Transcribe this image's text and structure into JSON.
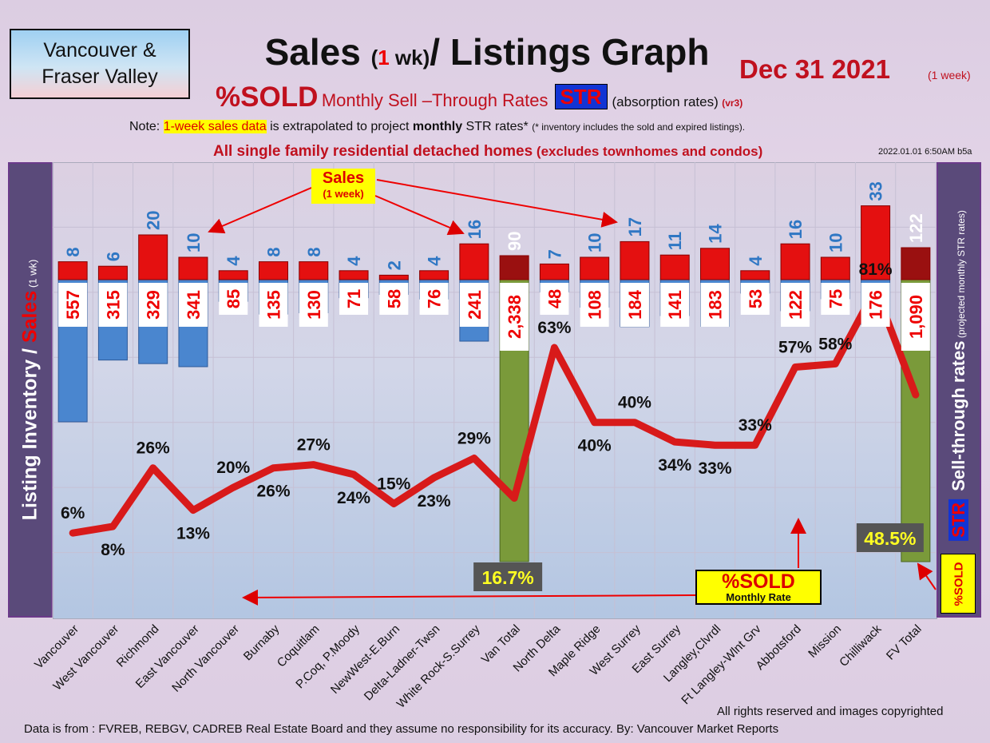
{
  "header": {
    "region": "Vancouver &\nFraser Valley",
    "title_main": "Sales",
    "title_paren_open": "(",
    "title_one": "1",
    "title_wk": " wk)",
    "title_rest": "/ Listings Graph",
    "date": "Dec  31  2021",
    "date_note": "(1 week)",
    "subtitle_pct": "%SOLD",
    "subtitle_rate": "Monthly Sell –Through Rates",
    "subtitle_str": "STR",
    "subtitle_abs": "(absorption rates)",
    "subtitle_ver": "(vr3)",
    "note_prefix": "Note: ",
    "note_highlight": "1-week sales data",
    "note_mid": " is extrapolated to project ",
    "note_bold": "monthly",
    "note_end": " STR rates* ",
    "note_small": "(* inventory includes the sold and expired listings).",
    "detached_main": "All single family residential detached homes",
    "detached_small": " (excludes townhomes and condos)",
    "timestamp": "2022.01.01 6:50AM b5a"
  },
  "axes": {
    "left_inventory": "Listing Inventory",
    "left_slash": " / ",
    "left_sales": "Sales",
    "left_sub": " (1 wk)",
    "right_str": "STR",
    "right_main": " Sell-through rates",
    "right_sub": " (projected monthly STR rates)",
    "right_sold": "%SOLD"
  },
  "callouts": {
    "sales_a": "Sales",
    "sales_b": "(1 week)",
    "sold_a": "%SOLD",
    "sold_b": "Monthly Rate"
  },
  "footer": {
    "rights": "All rights reserved and  images copyrighted",
    "source": "Data is from : FVREB, REBGV, CADREB Real Estate Board and they assume no responsibility for its accuracy. By: Vancouver Market Reports"
  },
  "colors": {
    "sales": "#e41010",
    "inventory": "#4a86cf",
    "total": "#7a9a3a",
    "line": "#d81a1a"
  },
  "chart_data": {
    "type": "bar",
    "categories": [
      "Vancouver",
      "West Vancouver",
      "Richmond",
      "East Vancouver",
      "North Vancouver",
      "Burnaby",
      "Coquitlam",
      "P.Coq, P.Moody",
      "NewWest-E.Burn",
      "Delta-Ladner-Twsn",
      "White Rock-S.Surrey",
      "Van Total",
      "North Delta",
      "Maple Ridge",
      "West Surrey",
      "East Surrey",
      "Langley,Clvrdl",
      "Ft Langley-Wlnt Grv",
      "Abbotsford",
      "Mission",
      "Chilliwack",
      "FV Total"
    ],
    "sales": [
      8,
      6,
      20,
      10,
      4,
      8,
      8,
      4,
      2,
      4,
      16,
      90,
      7,
      10,
      17,
      11,
      14,
      4,
      16,
      10,
      33,
      122
    ],
    "inventory": [
      557,
      315,
      329,
      341,
      85,
      135,
      130,
      71,
      58,
      76,
      241,
      2338,
      48,
      108,
      184,
      141,
      183,
      53,
      122,
      75,
      176,
      1090
    ],
    "inventory_labels": [
      "557",
      "315",
      "329",
      "341",
      "85",
      "135",
      "130",
      "71",
      "58",
      "76",
      "241",
      "2,338",
      "48",
      "108",
      "184",
      "141",
      "183",
      "53",
      "122",
      "75",
      "176",
      "1,090"
    ],
    "str_percent": [
      6,
      8,
      26,
      13,
      20,
      26,
      27,
      24,
      15,
      23,
      29,
      16.7,
      63,
      40,
      40,
      34,
      33,
      33,
      57,
      58,
      81,
      48.5
    ],
    "str_labels": [
      "6%",
      "8%",
      "26%",
      "13%",
      "20%",
      "26%",
      "27%",
      "24%",
      "15%",
      "23%",
      "29%",
      "16.7%",
      "63%",
      "40%",
      "40%",
      "34%",
      "33%",
      "33%",
      "57%",
      "58%",
      "81%",
      "48.5%"
    ]
  }
}
